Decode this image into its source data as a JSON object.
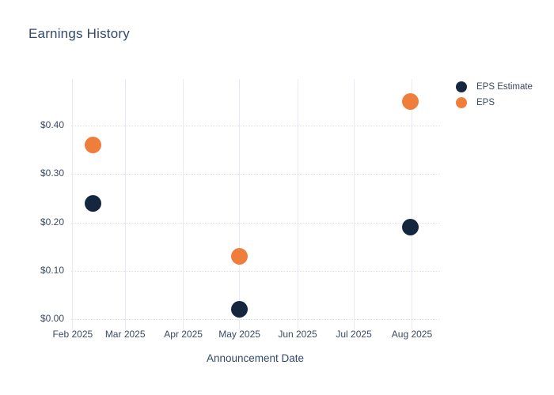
{
  "chart_data": {
    "type": "scatter",
    "title": "Earnings History",
    "xlabel": "Announcement Date",
    "ylabel": "",
    "x_ticks": [
      {
        "label": "Feb 2025",
        "date": "2025-02-01"
      },
      {
        "label": "Mar 2025",
        "date": "2025-03-01"
      },
      {
        "label": "Apr 2025",
        "date": "2025-04-01"
      },
      {
        "label": "May 2025",
        "date": "2025-05-01"
      },
      {
        "label": "Jun 2025",
        "date": "2025-06-01"
      },
      {
        "label": "Jul 2025",
        "date": "2025-07-01"
      },
      {
        "label": "Aug 2025",
        "date": "2025-08-01"
      }
    ],
    "y_ticks": [
      {
        "label": "$0.00",
        "value": 0.0
      },
      {
        "label": "$0.10",
        "value": 0.1
      },
      {
        "label": "$0.20",
        "value": 0.2
      },
      {
        "label": "$0.30",
        "value": 0.3
      },
      {
        "label": "$0.40",
        "value": 0.4
      }
    ],
    "xlim": [
      "2025-01-31",
      "2025-08-16"
    ],
    "ylim": [
      0,
      0.497
    ],
    "grid": true,
    "legend_position": "right",
    "legend": [
      {
        "name": "EPS Estimate",
        "color": "#15263f"
      },
      {
        "name": "EPS",
        "color": "#ef7d3b"
      }
    ],
    "series": [
      {
        "name": "EPS Estimate",
        "color": "#15263f",
        "points": [
          {
            "x": "2025-02-12",
            "y": 0.24
          },
          {
            "x": "2025-05-01",
            "y": 0.02
          },
          {
            "x": "2025-07-31",
            "y": 0.19
          }
        ]
      },
      {
        "name": "EPS",
        "color": "#ef7d3b",
        "points": [
          {
            "x": "2025-02-12",
            "y": 0.36
          },
          {
            "x": "2025-05-01",
            "y": 0.13
          },
          {
            "x": "2025-07-31",
            "y": 0.45
          }
        ]
      }
    ],
    "colors": {
      "accent_navy": "#15263f",
      "accent_orange": "#ef7d3b",
      "title_text": "#34496b",
      "tick_text": "#3b4a63",
      "grid_vertical": "#e8ebf5",
      "grid_horizontal": "#dee3ef",
      "background": "#ffffff"
    }
  }
}
